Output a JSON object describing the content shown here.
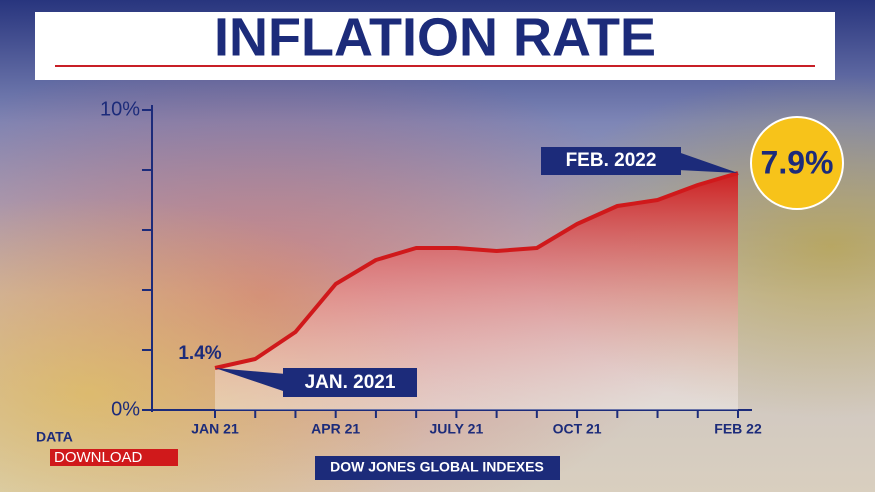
{
  "chart_data": {
    "type": "area",
    "title": "INFLATION RATE",
    "categories": [
      "JAN 21",
      null,
      null,
      "APR 21",
      null,
      null,
      "JULY 21",
      null,
      null,
      "OCT 21",
      null,
      null,
      null,
      "FEB 22"
    ],
    "values": [
      1.4,
      1.7,
      2.6,
      4.2,
      5.0,
      5.4,
      5.4,
      5.3,
      5.4,
      6.2,
      6.8,
      7.0,
      7.5,
      7.9
    ],
    "value_labels": [
      "1.4%",
      null,
      null,
      null,
      null,
      null,
      null,
      null,
      null,
      null,
      null,
      null,
      null,
      "7.9%"
    ],
    "color": "#d0191b",
    "ylim": [
      0,
      10
    ],
    "yticks": [
      {
        "value": 0,
        "label": "0%"
      },
      {
        "value": 10,
        "label": "10%"
      }
    ],
    "minor_yticks": [
      2,
      4,
      6,
      8
    ],
    "annotations": [
      "JAN. 2021",
      "FEB. 2022"
    ],
    "brand": [
      "DATA",
      "DOWNLOAD"
    ],
    "source": "DOW JONES GLOBAL INDEXES"
  }
}
